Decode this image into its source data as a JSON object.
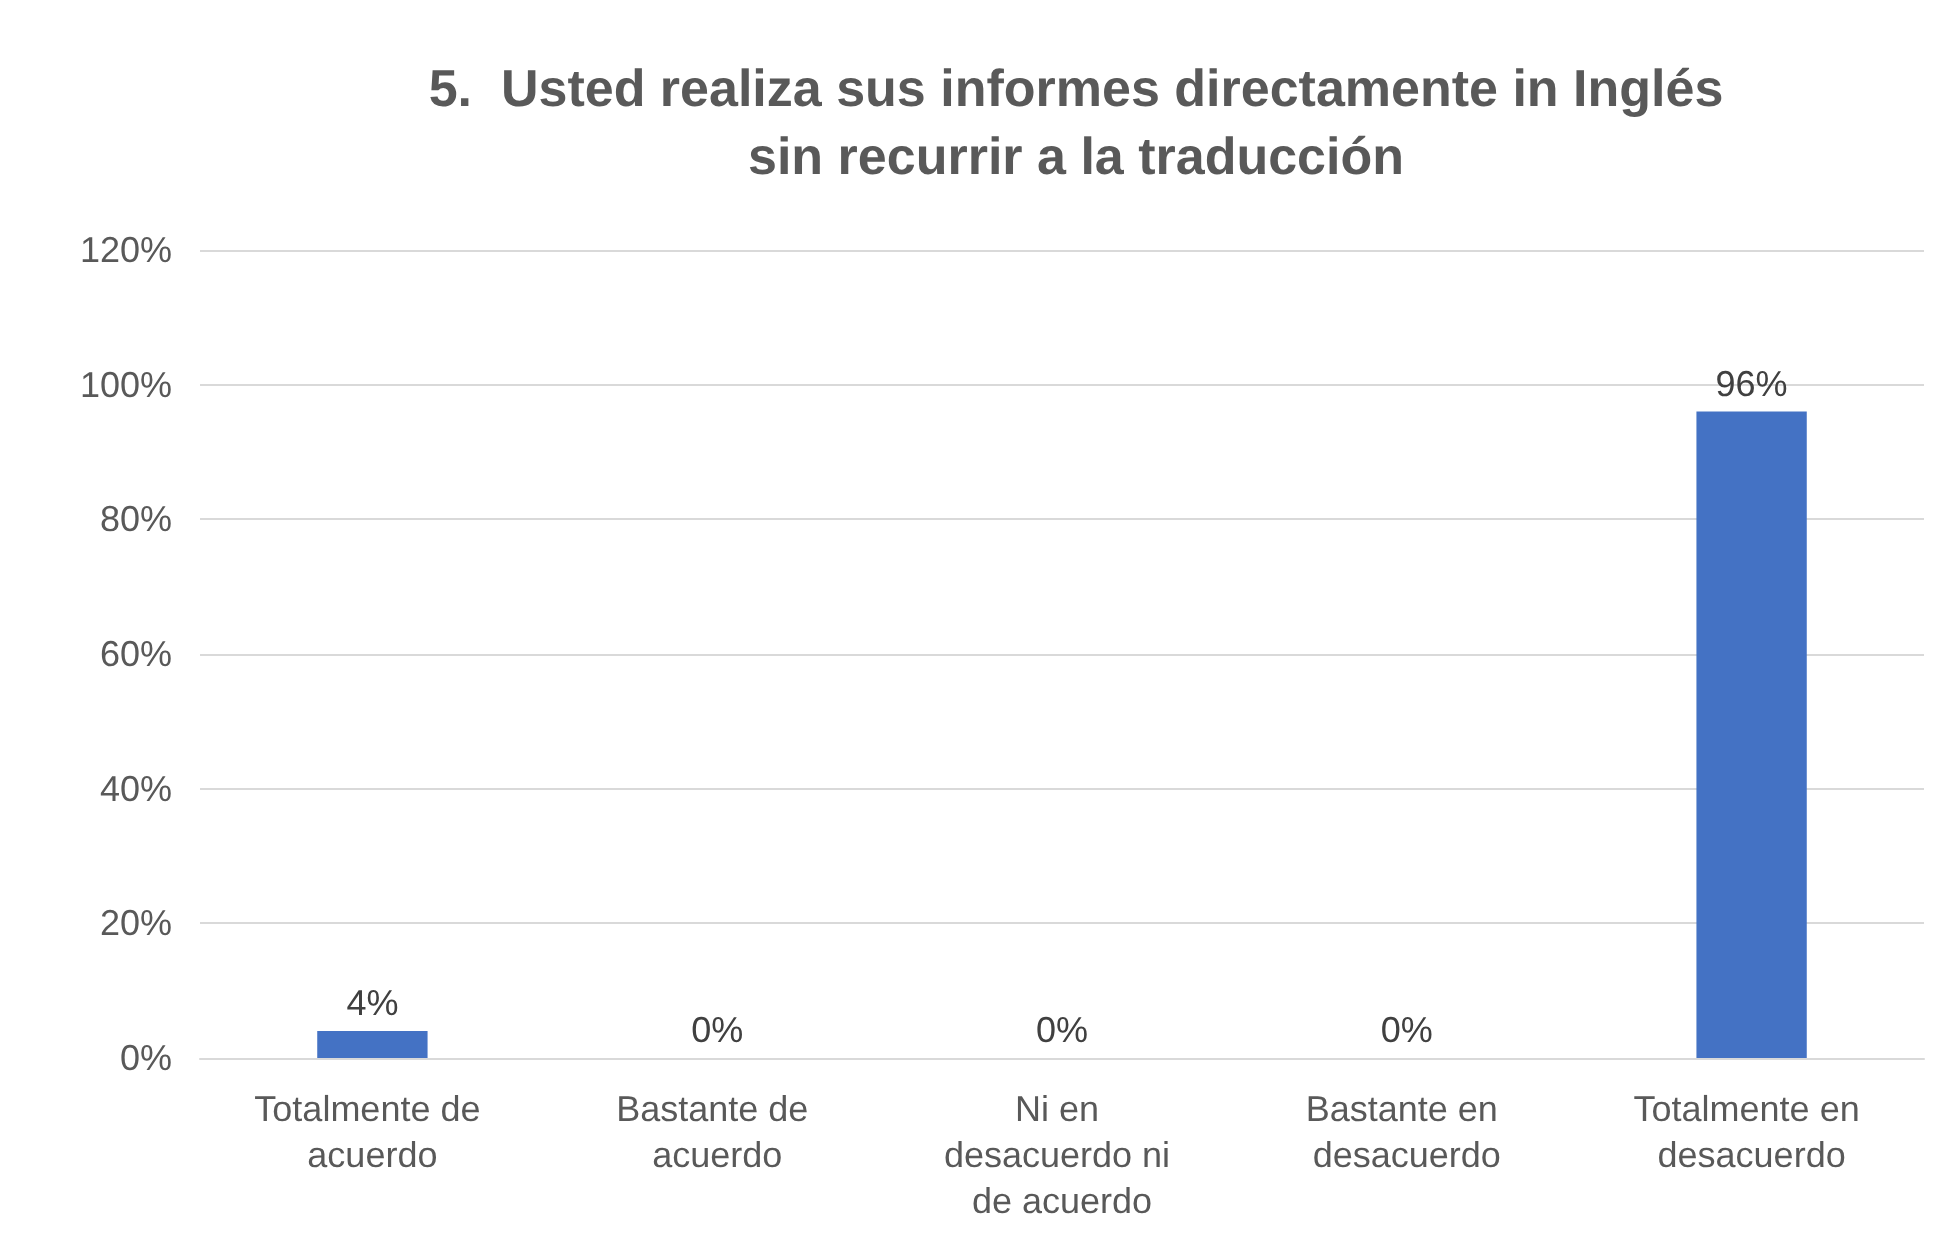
{
  "chart_data": {
    "type": "bar",
    "title": "5.  Usted realiza sus informes directamente in Inglés\nsin recurrir a la traducción",
    "categories": [
      "Totalmente de acuerdo",
      "Bastante de acuerdo",
      "Ni en desacuerdo ni de acuerdo",
      "Bastante en desacuerdo",
      "Totalmente en desacuerdo"
    ],
    "values": [
      4,
      0,
      0,
      0,
      96
    ],
    "value_labels": [
      "4%",
      "0%",
      "0%",
      "0%",
      "96%"
    ],
    "color": "#4472c4",
    "ylim": [
      0,
      120
    ],
    "yticks": [
      {
        "value": 0,
        "label": "0%"
      },
      {
        "value": 20,
        "label": "20%"
      },
      {
        "value": 40,
        "label": "40%"
      },
      {
        "value": 60,
        "label": "60%"
      },
      {
        "value": 80,
        "label": "80%"
      },
      {
        "value": 100,
        "label": "100%"
      },
      {
        "value": 120,
        "label": "120%"
      }
    ],
    "grid": "y"
  }
}
